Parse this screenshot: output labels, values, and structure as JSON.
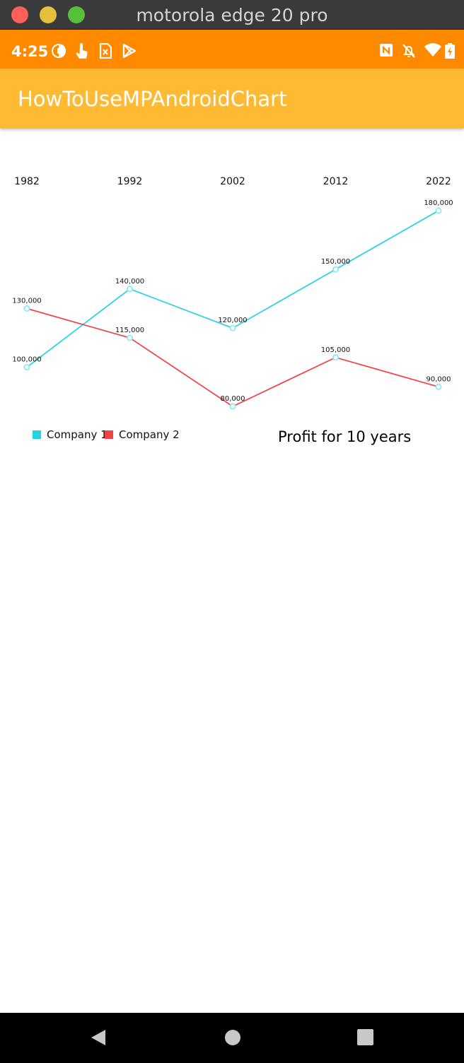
{
  "window": {
    "title": "motorola edge 20 pro"
  },
  "status_bar": {
    "time": "4:25",
    "left_icons": [
      "vpn-key-icon",
      "touch-icon",
      "sim-card-icon",
      "play-store-icon"
    ],
    "right_icons": [
      "nfc-icon",
      "notifications-off-icon",
      "wifi-icon",
      "battery-charging-icon"
    ],
    "color": "#ff8a00"
  },
  "app_bar": {
    "title": "HowToUseMPAndroidChart",
    "color": "#ffba33"
  },
  "chart_data": {
    "type": "line",
    "x": [
      "1982",
      "1992",
      "2002",
      "2012",
      "2022"
    ],
    "series": [
      {
        "name": "Company 1",
        "color": "#22d3e6",
        "values": [
          100000,
          140000,
          120000,
          150000,
          180000
        ],
        "labels": [
          "100,000",
          "140,000",
          "120,000",
          "150,000",
          "180,000"
        ]
      },
      {
        "name": "Company 2",
        "color": "#ef4444",
        "values": [
          130000,
          115000,
          80000,
          105000,
          90000
        ],
        "labels": [
          "130,000",
          "115,000",
          "80,000",
          "105,000",
          "90,000"
        ]
      }
    ],
    "x_axis_position": "top",
    "y_axis_visible": false,
    "grid": false,
    "legend_position": "bottom-left",
    "description": "Profit for 10 years",
    "description_position": "bottom-right"
  },
  "nav_bar": {
    "icons": [
      "back-icon",
      "home-icon",
      "recents-icon"
    ]
  }
}
